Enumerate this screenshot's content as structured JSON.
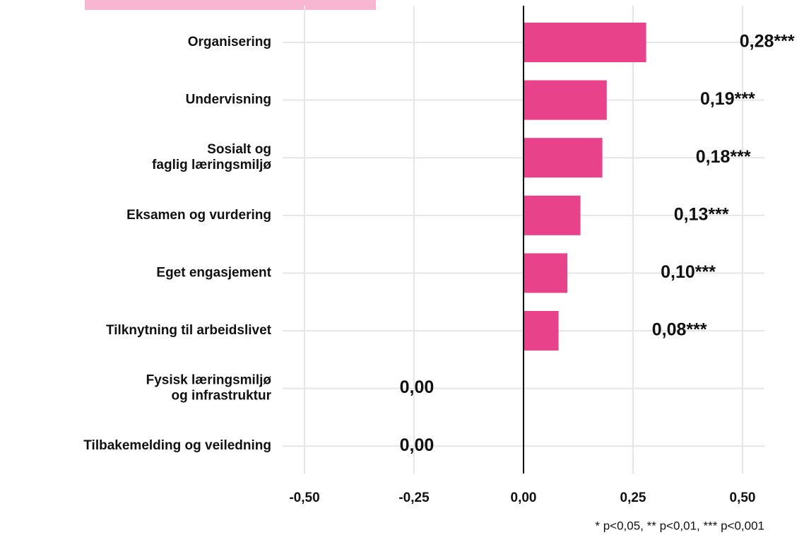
{
  "chart_data": {
    "type": "barh",
    "categories": [
      "Organisering",
      "Undervisning",
      "Sosialt og\nfaglig læringsmiljø",
      "Eksamen og vurdering",
      "Eget engasjement",
      "Tilknytning til arbeidslivet",
      "Fysisk læringsmiljø\nog infrastruktur",
      "Tilbakemelding og veiledning"
    ],
    "values": [
      0.28,
      0.19,
      0.18,
      0.13,
      0.1,
      0.08,
      0.0,
      0.0
    ],
    "value_labels": [
      "0,28***",
      "0,19***",
      "0,18***",
      "0,13***",
      "0,10***",
      "0,08***",
      "0,00",
      "0,00"
    ],
    "color": "#e8428a",
    "xlim": [
      -0.55,
      0.55
    ],
    "xticks": [
      {
        "value": -0.5,
        "label": "-0,50"
      },
      {
        "value": -0.25,
        "label": "-0,25"
      },
      {
        "value": 0,
        "label": "0,00"
      },
      {
        "value": 0.25,
        "label": "0,25"
      },
      {
        "value": 0.5,
        "label": "0,50"
      }
    ],
    "grid": true,
    "note": "* p<0,05, ** p<0,01, *** p<0,001"
  }
}
